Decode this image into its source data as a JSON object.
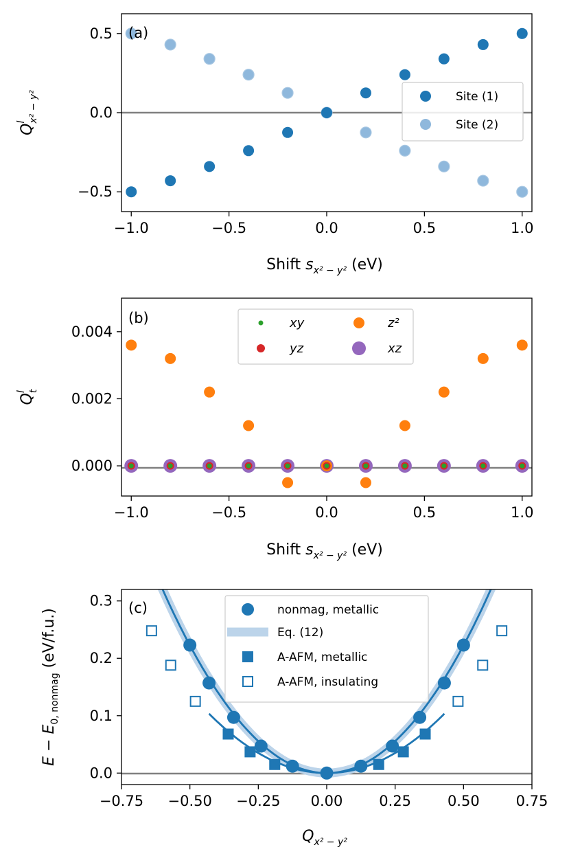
{
  "colors": {
    "blue": "#1f77b4",
    "light_blue": "#8fb8dc",
    "orange": "#ff7f0e",
    "green": "#2ca02c",
    "red": "#d62728",
    "purple": "#9467bd",
    "band": "#bcd4ea",
    "zero_line": "#808080"
  },
  "chart_data": [
    {
      "panel": "(a)",
      "type": "scatter",
      "xlabel_main": "Shift ",
      "xlabel_sym": "s",
      "xlabel_sub": "x² − y²",
      "xlabel_unit": " (eV)",
      "ylabel_sym": "Q",
      "ylabel_sup": "l",
      "ylabel_sub": "x² − y²",
      "xlim": [
        -1.05,
        1.05
      ],
      "ylim": [
        -0.625,
        0.625
      ],
      "xticks": [
        -1.0,
        -0.5,
        0.0,
        0.5,
        1.0
      ],
      "xtick_labels": [
        "−1.0",
        "−0.5",
        "0.0",
        "0.5",
        "1.0"
      ],
      "yticks": [
        -0.5,
        0.0,
        0.5
      ],
      "ytick_labels": [
        "−0.5",
        "0.0",
        "0.5"
      ],
      "zero_line": true,
      "legend_position": "right",
      "series": [
        {
          "name": "Site (1)",
          "x": [
            -1.0,
            -0.8,
            -0.6,
            -0.4,
            -0.2,
            0.0,
            0.2,
            0.4,
            0.6,
            0.8,
            1.0
          ],
          "y": [
            -0.5,
            -0.43,
            -0.34,
            -0.24,
            -0.125,
            0.0,
            0.125,
            0.24,
            0.34,
            0.43,
            0.5
          ]
        },
        {
          "name": "Site (2)",
          "x": [
            -1.0,
            -0.8,
            -0.6,
            -0.4,
            -0.2,
            0.0,
            0.2,
            0.4,
            0.6,
            0.8,
            1.0
          ],
          "y": [
            0.5,
            0.43,
            0.34,
            0.24,
            0.125,
            0.0,
            -0.125,
            -0.24,
            -0.34,
            -0.43,
            -0.5
          ]
        }
      ]
    },
    {
      "panel": "(b)",
      "type": "scatter",
      "xlabel_main": "Shift ",
      "xlabel_sym": "s",
      "xlabel_sub": "x² − y²",
      "xlabel_unit": " (eV)",
      "ylabel_sym": "Q",
      "ylabel_sup": "l",
      "ylabel_sub": "t",
      "xlim": [
        -1.05,
        1.05
      ],
      "ylim": [
        -0.0009,
        0.005
      ],
      "xticks": [
        -1.0,
        -0.5,
        0.0,
        0.5,
        1.0
      ],
      "xtick_labels": [
        "−1.0",
        "−0.5",
        "0.0",
        "0.5",
        "1.0"
      ],
      "yticks": [
        0.0,
        0.002,
        0.004
      ],
      "ytick_labels": [
        "0.000",
        "0.002",
        "0.004"
      ],
      "zero_line": true,
      "legend_position": "top-center",
      "series": [
        {
          "name": "xz",
          "x": [
            -1.0,
            -0.8,
            -0.6,
            -0.4,
            -0.2,
            0.0,
            0.2,
            0.4,
            0.6,
            0.8,
            1.0
          ],
          "y": [
            0,
            0,
            0,
            0,
            0,
            0,
            0,
            0,
            0,
            0,
            0
          ]
        },
        {
          "name": "z²",
          "x": [
            -1.0,
            -0.8,
            -0.6,
            -0.4,
            -0.2,
            0.0,
            0.2,
            0.4,
            0.6,
            0.8,
            1.0
          ],
          "y": [
            0.0036,
            0.0032,
            0.0022,
            0.0012,
            -0.0005,
            0.0,
            -0.0005,
            0.0012,
            0.0022,
            0.0032,
            0.0036
          ]
        },
        {
          "name": "yz",
          "x": [
            -1.0,
            -0.8,
            -0.6,
            -0.4,
            -0.2,
            0.0,
            0.2,
            0.4,
            0.6,
            0.8,
            1.0
          ],
          "y": [
            0,
            0,
            0,
            0,
            0,
            0,
            0,
            0,
            0,
            0,
            0
          ]
        },
        {
          "name": "xy",
          "x": [
            -1.0,
            -0.8,
            -0.6,
            -0.4,
            -0.2,
            0.0,
            0.2,
            0.4,
            0.6,
            0.8,
            1.0
          ],
          "y": [
            0,
            0,
            0,
            0,
            0,
            0,
            0,
            0,
            0,
            0,
            0
          ]
        }
      ]
    },
    {
      "panel": "(c)",
      "type": "line",
      "xlabel_sym": "Q",
      "xlabel_sub": "x² − y²",
      "ylabel_main": "E − E",
      "ylabel_sub": "0, nonmag",
      "ylabel_unit": " (eV/f.u.)",
      "xlim": [
        -0.75,
        0.75
      ],
      "ylim": [
        -0.02,
        0.32
      ],
      "xticks": [
        -0.75,
        -0.5,
        -0.25,
        0.0,
        0.25,
        0.5,
        0.75
      ],
      "xtick_labels": [
        "−0.75",
        "−0.50",
        "−0.25",
        "0.00",
        "0.25",
        "0.50",
        "0.75"
      ],
      "yticks": [
        0.0,
        0.1,
        0.2,
        0.3
      ],
      "ytick_labels": [
        "0.0",
        "0.1",
        "0.2",
        "0.3"
      ],
      "zero_line": true,
      "legend_position": "top-center",
      "series": [
        {
          "name": "nonmag, metallic",
          "x": [
            -0.5,
            -0.43,
            -0.34,
            -0.24,
            -0.125,
            0.0,
            0.125,
            0.24,
            0.34,
            0.43,
            0.5
          ],
          "y": [
            0.223,
            0.157,
            0.097,
            0.047,
            0.012,
            0.0,
            0.012,
            0.047,
            0.097,
            0.157,
            0.223
          ]
        },
        {
          "name": "Eq. (12)",
          "quadratic_coefficient": 0.89
        },
        {
          "name": "A-AFM, metallic",
          "x": [
            -0.36,
            -0.28,
            -0.19,
            0.19,
            0.28,
            0.36
          ],
          "y": [
            0.068,
            0.037,
            0.015,
            0.015,
            0.037,
            0.068
          ]
        },
        {
          "name": "A-AFM, insulating",
          "x": [
            -0.64,
            -0.57,
            -0.48,
            0.48,
            0.57,
            0.64
          ],
          "y": [
            0.248,
            0.188,
            0.125,
            0.125,
            0.188,
            0.248
          ]
        }
      ],
      "fit_curves": [
        {
          "name": "nonmag fit",
          "coefficient": 0.89,
          "range": [
            -0.62,
            0.62
          ]
        },
        {
          "name": "A-AFM fit",
          "coefficient": 0.56,
          "range": [
            -0.43,
            0.43
          ]
        }
      ]
    }
  ]
}
